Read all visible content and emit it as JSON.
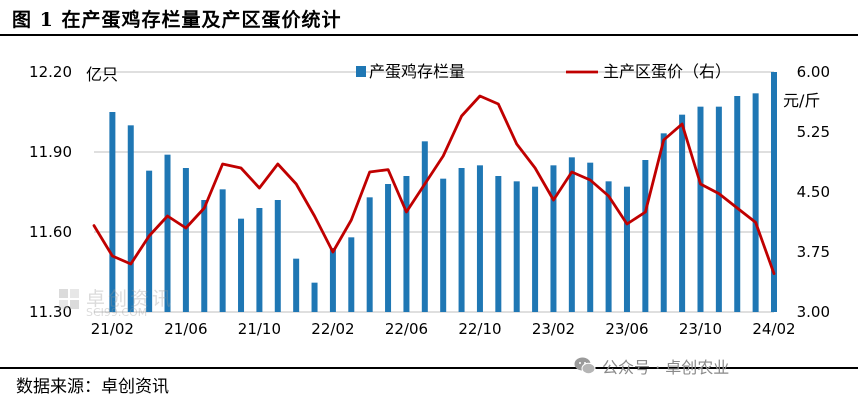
{
  "header": {
    "title": "图 1  在产蛋鸡存栏量及产区蛋价统计"
  },
  "footer": {
    "source": "数据来源：卓创资讯"
  },
  "watermark": {
    "text": "公众号 · 卓创农业",
    "icon": "wechat-icon"
  },
  "faint_watermark": {
    "cn": "卓创资讯",
    "en": "SCI99.COM"
  },
  "colors": {
    "bar": "#1f77b4",
    "line": "#c00000",
    "axis": "#bfbfbf"
  },
  "chart_data": {
    "type": "bar",
    "left_axis": {
      "unit": "亿只",
      "min": 11.3,
      "max": 12.2,
      "ticks": [
        "12.20",
        "11.90",
        "11.60",
        "11.30"
      ]
    },
    "right_axis": {
      "unit": "元/斤",
      "min": 3.0,
      "max": 6.0,
      "ticks": [
        "6.00",
        "5.25",
        "4.50",
        "3.75",
        "3.00"
      ]
    },
    "x_tick_labels": [
      "21/02",
      "21/06",
      "21/10",
      "22/02",
      "22/06",
      "22/10",
      "23/02",
      "23/06",
      "23/10",
      "24/02"
    ],
    "x_tick_indices": [
      0,
      4,
      8,
      12,
      16,
      20,
      24,
      28,
      32,
      36
    ],
    "series": [
      {
        "name": "产蛋鸡存栏量",
        "kind": "bar",
        "axis": "left",
        "values": [
          12.05,
          12.0,
          11.83,
          11.89,
          11.84,
          11.72,
          11.76,
          11.65,
          11.69,
          11.72,
          11.5,
          11.41,
          11.54,
          11.58,
          11.73,
          11.78,
          11.81,
          11.94,
          11.8,
          11.84,
          11.85,
          11.81,
          11.79,
          11.77,
          11.85,
          11.88,
          11.86,
          11.79,
          11.77,
          11.87,
          11.97,
          12.04,
          12.07,
          12.07,
          12.11,
          12.12,
          12.2
        ]
      },
      {
        "name": "主产区蛋价（右）",
        "kind": "line",
        "axis": "right",
        "values": [
          4.08,
          3.7,
          3.6,
          3.95,
          4.2,
          4.05,
          4.3,
          4.85,
          4.8,
          4.55,
          4.85,
          4.6,
          4.2,
          3.75,
          4.15,
          4.75,
          4.78,
          4.25,
          4.6,
          4.95,
          5.45,
          5.7,
          5.6,
          5.1,
          4.8,
          4.4,
          4.75,
          4.65,
          4.45,
          4.1,
          4.25,
          5.15,
          5.35,
          4.6,
          4.48,
          4.3,
          4.12,
          3.48
        ]
      }
    ],
    "legend_position": "top"
  }
}
